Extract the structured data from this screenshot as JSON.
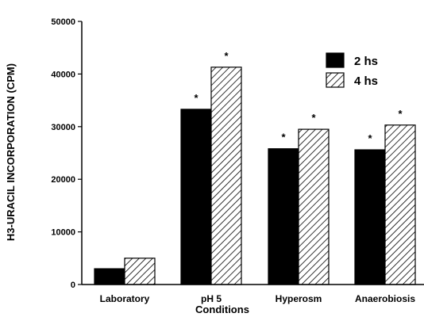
{
  "chart_data": {
    "type": "bar",
    "title": "",
    "xlabel": "Conditions",
    "ylabel": "H3-URACIL INCORPORATION (CPM)",
    "ylim": [
      0,
      50000
    ],
    "yticks": [
      0,
      10000,
      20000,
      30000,
      40000,
      50000
    ],
    "categories": [
      "Laboratory",
      "pH  5",
      "Hyperosm",
      "Anaerobiosis"
    ],
    "series": [
      {
        "name": "2 hs",
        "values": [
          3000,
          33300,
          25800,
          25600
        ],
        "color": "#000000",
        "pattern": "solid"
      },
      {
        "name": "4 hs",
        "values": [
          5000,
          41300,
          29500,
          30300
        ],
        "color": "#ffffff",
        "pattern": "diagonal-hatch"
      }
    ],
    "significance_marker": "*",
    "significant": [
      [
        false,
        true,
        true,
        true
      ],
      [
        false,
        true,
        true,
        true
      ]
    ],
    "legend_position": "top-right",
    "grid": false
  }
}
